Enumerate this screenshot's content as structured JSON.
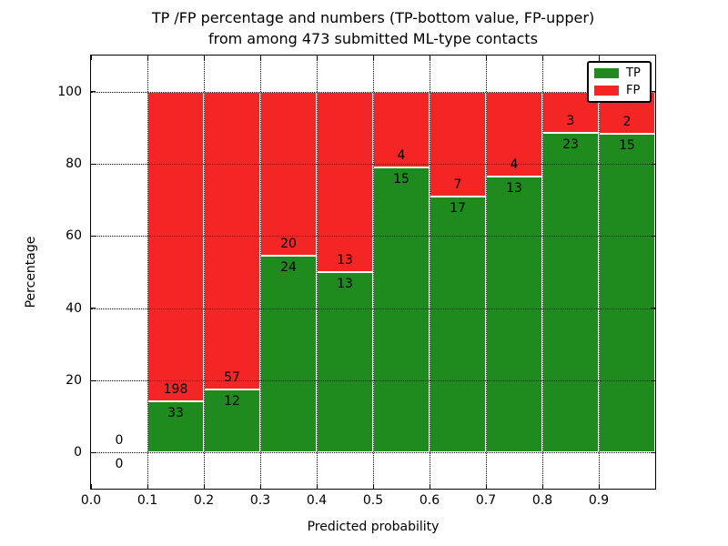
{
  "chart_data": {
    "type": "bar",
    "stacked": true,
    "title_line1": "TP /FP percentage and numbers (TP-bottom value, FP-upper)",
    "title_line2": "from among 473 submitted ML-type contacts",
    "xlabel": "Predicted probability",
    "ylabel": "Percentage",
    "xlim": [
      0.0,
      1.0
    ],
    "ylim": [
      -10,
      110
    ],
    "xtick_labels": [
      "0.0",
      "0.1",
      "0.2",
      "0.3",
      "0.4",
      "0.5",
      "0.6",
      "0.7",
      "0.8",
      "0.9"
    ],
    "ytick_values": [
      0,
      20,
      40,
      60,
      80,
      100
    ],
    "grid": "dotted",
    "legend_position": "upper-right",
    "colors": {
      "tp": "#1f8b1f",
      "fp": "#f42525"
    },
    "legend": [
      {
        "label": "TP",
        "series": "tp"
      },
      {
        "label": "FP",
        "series": "fp"
      }
    ],
    "bins": [
      {
        "x_start": 0.0,
        "x_end": 0.1,
        "tp_count": 0,
        "fp_count": 0,
        "tp_pct": 0,
        "fp_pct": 0
      },
      {
        "x_start": 0.1,
        "x_end": 0.2,
        "tp_count": 33,
        "fp_count": 198,
        "tp_pct": 14.29,
        "fp_pct": 85.71
      },
      {
        "x_start": 0.2,
        "x_end": 0.3,
        "tp_count": 12,
        "fp_count": 57,
        "tp_pct": 17.39,
        "fp_pct": 82.61
      },
      {
        "x_start": 0.3,
        "x_end": 0.4,
        "tp_count": 24,
        "fp_count": 20,
        "tp_pct": 54.55,
        "fp_pct": 45.45
      },
      {
        "x_start": 0.4,
        "x_end": 0.5,
        "tp_count": 13,
        "fp_count": 13,
        "tp_pct": 50.0,
        "fp_pct": 50.0
      },
      {
        "x_start": 0.5,
        "x_end": 0.6,
        "tp_count": 15,
        "fp_count": 4,
        "tp_pct": 78.95,
        "fp_pct": 21.05
      },
      {
        "x_start": 0.6,
        "x_end": 0.7,
        "tp_count": 17,
        "fp_count": 7,
        "tp_pct": 70.83,
        "fp_pct": 29.17
      },
      {
        "x_start": 0.7,
        "x_end": 0.8,
        "tp_count": 13,
        "fp_count": 4,
        "tp_pct": 76.47,
        "fp_pct": 23.53
      },
      {
        "x_start": 0.8,
        "x_end": 0.9,
        "tp_count": 23,
        "fp_count": 3,
        "tp_pct": 88.46,
        "fp_pct": 11.54
      },
      {
        "x_start": 0.9,
        "x_end": 1.0,
        "tp_count": 15,
        "fp_count": 2,
        "tp_pct": 88.24,
        "fp_pct": 11.76
      }
    ]
  }
}
